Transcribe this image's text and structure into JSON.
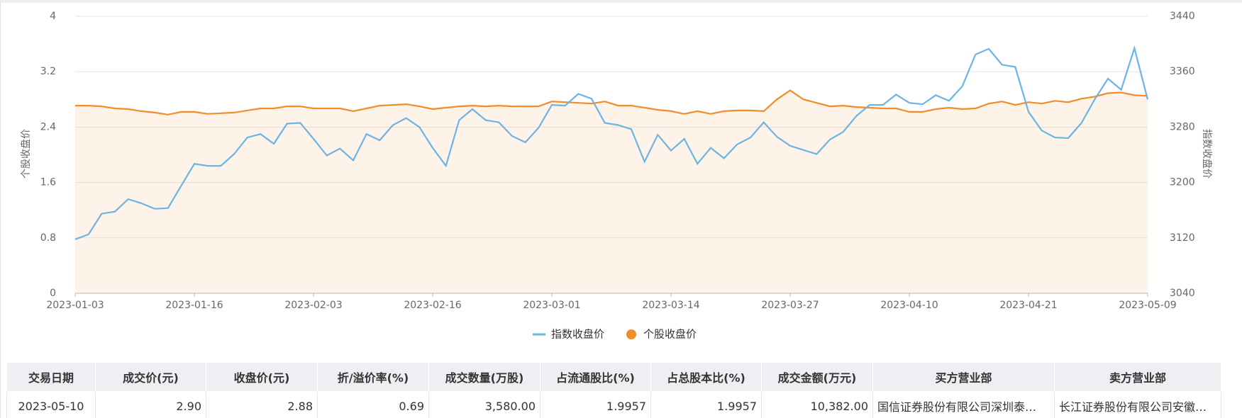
{
  "chart_data": {
    "type": "line",
    "categories": [
      "2023-01-03",
      null,
      null,
      null,
      null,
      null,
      null,
      null,
      null,
      "2023-01-16",
      null,
      null,
      null,
      null,
      null,
      null,
      null,
      null,
      "2023-02-03",
      null,
      null,
      null,
      null,
      null,
      null,
      null,
      null,
      "2023-02-16",
      null,
      null,
      null,
      null,
      null,
      null,
      null,
      null,
      "2023-03-01",
      null,
      null,
      null,
      null,
      null,
      null,
      null,
      null,
      "2023-03-14",
      null,
      null,
      null,
      null,
      null,
      null,
      null,
      null,
      "2023-03-27",
      null,
      null,
      null,
      null,
      null,
      null,
      null,
      null,
      "2023-04-10",
      null,
      null,
      null,
      null,
      null,
      null,
      null,
      null,
      "2023-04-21",
      null,
      null,
      null,
      null,
      null,
      null,
      null,
      null,
      "2023-05-09"
    ],
    "series": [
      {
        "name": "指数收盘价",
        "color": "#6cb4e4",
        "axis": "y2",
        "values": [
          3118,
          3125,
          3155,
          3158,
          3176,
          3170,
          3162,
          3163,
          3195,
          3227,
          3224,
          3224,
          3241,
          3265,
          3270,
          3256,
          3285,
          3286,
          3263,
          3239,
          3249,
          3232,
          3270,
          3261,
          3283,
          3293,
          3280,
          3250,
          3224,
          3290,
          3306,
          3290,
          3287,
          3267,
          3258,
          3279,
          3312,
          3311,
          3328,
          3321,
          3286,
          3283,
          3277,
          3230,
          3269,
          3246,
          3263,
          3227,
          3250,
          3235,
          3255,
          3265,
          3287,
          3266,
          3253,
          3247,
          3241,
          3262,
          3273,
          3296,
          3312,
          3312,
          3327,
          3315,
          3313,
          3326,
          3318,
          3339,
          3385,
          3393,
          3370,
          3367,
          3302,
          3275,
          3265,
          3264,
          3286,
          3320,
          3350,
          3334,
          3394,
          3320
        ]
      },
      {
        "name": "个股收盘价",
        "color": "#f28c28",
        "values": [
          2.71,
          2.71,
          2.7,
          2.67,
          2.66,
          2.63,
          2.61,
          2.58,
          2.62,
          2.62,
          2.59,
          2.6,
          2.61,
          2.64,
          2.67,
          2.67,
          2.7,
          2.7,
          2.67,
          2.67,
          2.67,
          2.63,
          2.67,
          2.71,
          2.72,
          2.73,
          2.7,
          2.66,
          2.68,
          2.7,
          2.71,
          2.7,
          2.71,
          2.7,
          2.7,
          2.7,
          2.77,
          2.76,
          2.75,
          2.74,
          2.77,
          2.71,
          2.71,
          2.68,
          2.65,
          2.63,
          2.59,
          2.63,
          2.59,
          2.63,
          2.64,
          2.64,
          2.63,
          2.8,
          2.93,
          2.8,
          2.75,
          2.7,
          2.71,
          2.69,
          2.68,
          2.67,
          2.67,
          2.62,
          2.62,
          2.66,
          2.68,
          2.66,
          2.67,
          2.74,
          2.77,
          2.72,
          2.76,
          2.74,
          2.78,
          2.76,
          2.81,
          2.84,
          2.89,
          2.9,
          2.86,
          2.85
        ]
      }
    ],
    "ylabel": "个股收盘价",
    "y2label": "指数收盘价",
    "ylim": [
      0,
      4
    ],
    "yticks": [
      0,
      0.8,
      1.6,
      2.4,
      3.2,
      4
    ],
    "y2lim": [
      3040,
      3440
    ],
    "y2ticks": [
      3040,
      3120,
      3200,
      3280,
      3360,
      3440
    ],
    "grid": true,
    "legend": "bottom"
  },
  "table": {
    "headers": [
      "交易日期",
      "成交价(元)",
      "收盘价(元)",
      "折/溢价率(%)",
      "成交数量(万股)",
      "占流通股比(%)",
      "占总股本比(%)",
      "成交金额(万元)",
      "买方营业部",
      "卖方营业部"
    ],
    "rows": [
      [
        "2023-05-10",
        "2.90",
        "2.88",
        "0.69",
        "3,580.00",
        "1.9957",
        "1.9957",
        "10,382.00",
        "国信证券股份有限公司深圳泰…",
        "长江证券股份有限公司安徽…"
      ]
    ]
  }
}
